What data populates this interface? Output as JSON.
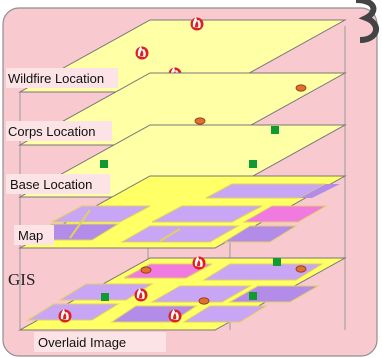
{
  "layers": {
    "wildfire": {
      "label": "Wildfire Location"
    },
    "corps": {
      "label": "Corps Location"
    },
    "base": {
      "label": "Base Location"
    },
    "map": {
      "label": "Map"
    },
    "gis": {
      "label": "GIS"
    },
    "overlaid": {
      "label": "Overlaid Image"
    }
  },
  "colors": {
    "panel_background": "#f8c9cf",
    "panel_border": "#8f8f8f",
    "layer_fill": "#ffffa6",
    "road_fill": "#ffff66",
    "block_fill": "#c9a5f5",
    "block_stripe": "#b38be8",
    "block_pink": "#f07ae0",
    "fire_icon": "#e02020",
    "corps_marker": "#e07030",
    "base_marker": "#119933",
    "corner_glyph": "#444444"
  }
}
